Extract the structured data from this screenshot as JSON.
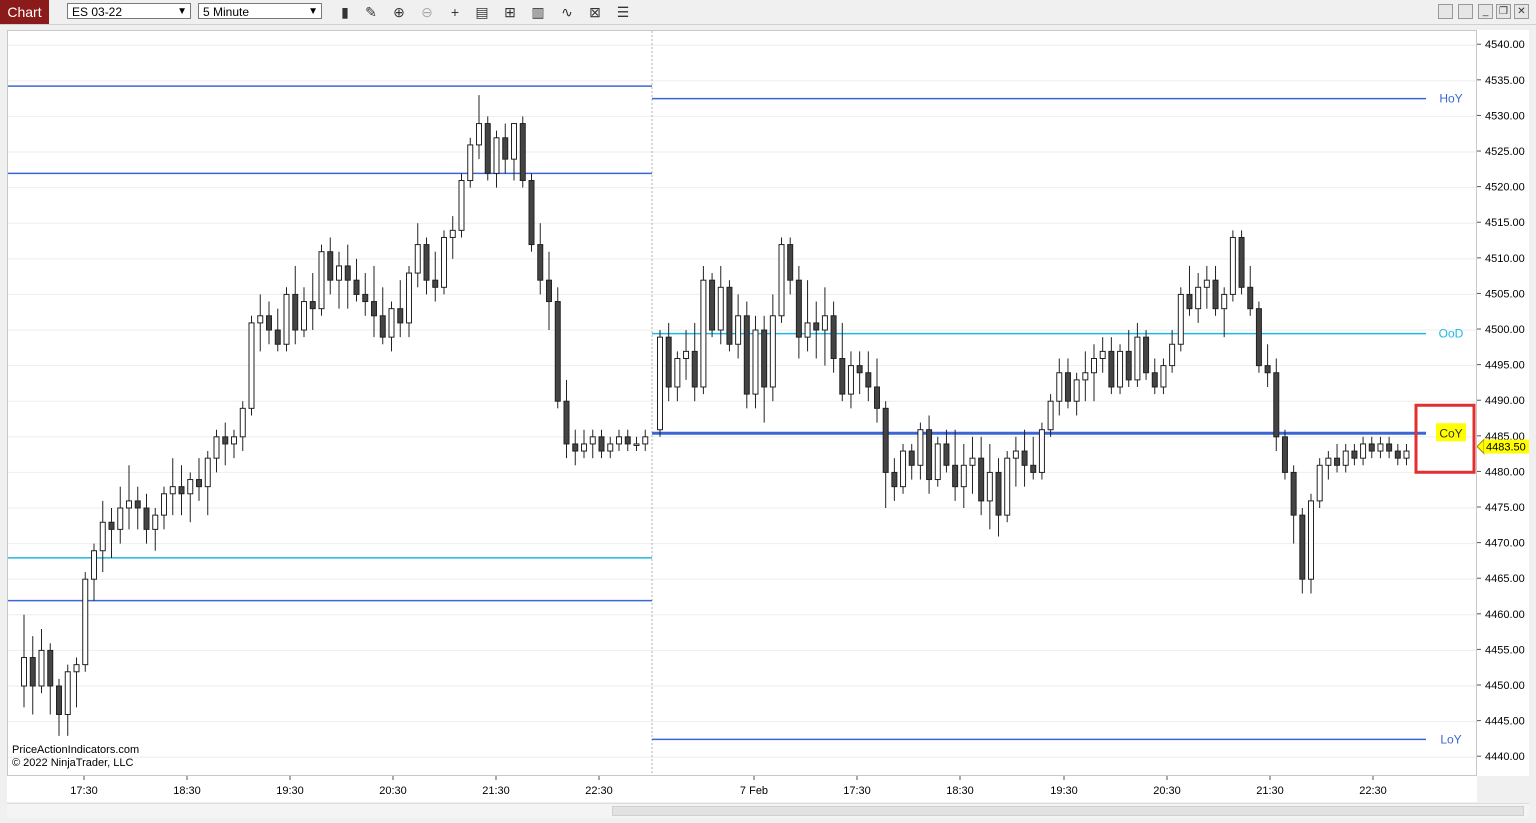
{
  "toolbar": {
    "tab_label": "Chart",
    "instrument": "ES 03-22",
    "interval": "5 Minute"
  },
  "credits": {
    "line1": "PriceActionIndicators.com",
    "line2": "© 2022 NinjaTrader, LLC"
  },
  "colors": {
    "blue_level": "#3a66d6",
    "cyan_level": "#1fb8e6",
    "label_blue": "#3a66d6",
    "label_cyan": "#1fb8e6",
    "price_marker": "#ffff00",
    "highlight_box": "#e03030"
  },
  "chart_data": {
    "type": "candlestick",
    "y_axis": {
      "ticks": [
        "4540.00",
        "4535.00",
        "4530.00",
        "4525.00",
        "4520.00",
        "4515.00",
        "4510.00",
        "4505.00",
        "4500.00",
        "4495.00",
        "4490.00",
        "4485.00",
        "4480.00",
        "4475.00",
        "4470.00",
        "4465.00",
        "4460.00",
        "4455.00",
        "4450.00",
        "4445.00",
        "4440.00"
      ],
      "ylim": [
        4437.5,
        4542
      ]
    },
    "x_axis": {
      "labels": [
        "17:30",
        "18:30",
        "19:30",
        "20:30",
        "21:30",
        "22:30",
        "7 Feb",
        "17:30",
        "18:30",
        "19:30",
        "20:30",
        "21:30",
        "22:30"
      ]
    },
    "last_price": "4483.50",
    "session_labels": [
      {
        "name": "HoY",
        "value": 4532.5,
        "style": "blue"
      },
      {
        "name": "OoD",
        "value": 4499.5,
        "style": "cyan"
      },
      {
        "name": "CoY",
        "value": 4485.5,
        "style": "blue",
        "highlighted": true
      },
      {
        "name": "LoY",
        "value": 4442.5,
        "style": "blue"
      }
    ],
    "prior_levels": [
      {
        "value": 4534.25,
        "style": "blue"
      },
      {
        "value": 4522.0,
        "style": "blue"
      },
      {
        "value": 4468.0,
        "style": "cyan"
      },
      {
        "value": 4462.0,
        "style": "blue"
      }
    ],
    "candles_session1": [
      [
        4450,
        4460,
        4447,
        4454
      ],
      [
        4454,
        4457,
        4446,
        4450
      ],
      [
        4450,
        4458,
        4449,
        4455
      ],
      [
        4455,
        4456,
        4446,
        4450
      ],
      [
        4450,
        4451,
        4443,
        4446
      ],
      [
        4446,
        4453,
        4443,
        4452
      ],
      [
        4452,
        4454,
        4447,
        4453
      ],
      [
        4453,
        4466,
        4452,
        4465
      ],
      [
        4465,
        4470,
        4462,
        4469
      ],
      [
        4469,
        4476,
        4466,
        4473
      ],
      [
        4473,
        4475,
        4468,
        4472
      ],
      [
        4472,
        4478,
        4470,
        4475
      ],
      [
        4475,
        4481,
        4472,
        4476
      ],
      [
        4476,
        4478,
        4472,
        4475
      ],
      [
        4475,
        4477,
        4470,
        4472
      ],
      [
        4472,
        4475,
        4469,
        4474
      ],
      [
        4474,
        4478,
        4472,
        4477
      ],
      [
        4477,
        4482,
        4474,
        4478
      ],
      [
        4478,
        4481,
        4474,
        4477
      ],
      [
        4477,
        4480,
        4473,
        4479
      ],
      [
        4479,
        4482,
        4476,
        4478
      ],
      [
        4478,
        4483,
        4474,
        4482
      ],
      [
        4482,
        4486,
        4480,
        4485
      ],
      [
        4485,
        4487,
        4481,
        4484
      ],
      [
        4484,
        4486,
        4482,
        4485
      ],
      [
        4485,
        4490,
        4483,
        4489
      ],
      [
        4489,
        4502,
        4488,
        4501
      ],
      [
        4501,
        4505,
        4497,
        4502
      ],
      [
        4502,
        4504,
        4498,
        4500
      ],
      [
        4500,
        4503,
        4497,
        4498
      ],
      [
        4498,
        4506,
        4497,
        4505
      ],
      [
        4505,
        4509,
        4498,
        4500
      ],
      [
        4500,
        4506,
        4499,
        4504
      ],
      [
        4504,
        4508,
        4500,
        4503
      ],
      [
        4503,
        4512,
        4502,
        4511
      ],
      [
        4511,
        4513,
        4505,
        4507
      ],
      [
        4507,
        4511,
        4503,
        4509
      ],
      [
        4509,
        4512,
        4503,
        4507
      ],
      [
        4507,
        4510,
        4504,
        4505
      ],
      [
        4505,
        4508,
        4502,
        4504
      ],
      [
        4504,
        4509,
        4499,
        4502
      ],
      [
        4502,
        4506,
        4498,
        4499
      ],
      [
        4499,
        4504,
        4497,
        4503
      ],
      [
        4503,
        4507,
        4499,
        4501
      ],
      [
        4501,
        4509,
        4499,
        4508
      ],
      [
        4508,
        4515,
        4506,
        4512
      ],
      [
        4512,
        4513,
        4505,
        4507
      ],
      [
        4507,
        4511,
        4504,
        4506
      ],
      [
        4506,
        4514,
        4505,
        4513
      ],
      [
        4513,
        4516,
        4510,
        4514
      ],
      [
        4514,
        4522,
        4513,
        4521
      ],
      [
        4521,
        4527,
        4520,
        4526
      ],
      [
        4526,
        4533,
        4524,
        4529
      ],
      [
        4529,
        4530,
        4521,
        4522
      ],
      [
        4522,
        4528,
        4520,
        4527
      ],
      [
        4527,
        4529,
        4522,
        4524
      ],
      [
        4524,
        4529,
        4521,
        4529
      ],
      [
        4529,
        4530,
        4520,
        4521
      ],
      [
        4521,
        4522,
        4511,
        4512
      ],
      [
        4512,
        4515,
        4505,
        4507
      ],
      [
        4507,
        4511,
        4500,
        4504
      ],
      [
        4504,
        4506,
        4489,
        4490
      ],
      [
        4490,
        4493,
        4482,
        4484
      ],
      [
        4484,
        4486,
        4481,
        4483
      ],
      [
        4483,
        4486,
        4482,
        4484
      ],
      [
        4484,
        4486,
        4482,
        4485
      ],
      [
        4485,
        4486,
        4482,
        4483
      ],
      [
        4483,
        4485,
        4482,
        4484
      ],
      [
        4484,
        4486,
        4483,
        4485
      ],
      [
        4485,
        4486,
        4483,
        4484
      ],
      [
        4484,
        4485,
        4483,
        4484
      ],
      [
        4484,
        4486,
        4483,
        4485
      ]
    ],
    "candles_session2": [
      [
        4486,
        4500,
        4485,
        4499
      ],
      [
        4499,
        4501,
        4490,
        4492
      ],
      [
        4492,
        4497,
        4490,
        4496
      ],
      [
        4496,
        4500,
        4493,
        4497
      ],
      [
        4497,
        4501,
        4490,
        4492
      ],
      [
        4492,
        4509,
        4491,
        4507
      ],
      [
        4507,
        4508,
        4499,
        4500
      ],
      [
        4500,
        4509,
        4498,
        4506
      ],
      [
        4506,
        4507,
        4497,
        4498
      ],
      [
        4498,
        4505,
        4496,
        4502
      ],
      [
        4502,
        4504,
        4489,
        4491
      ],
      [
        4491,
        4502,
        4489,
        4500
      ],
      [
        4500,
        4502,
        4487,
        4492
      ],
      [
        4492,
        4505,
        4490,
        4502
      ],
      [
        4502,
        4513,
        4501,
        4512
      ],
      [
        4512,
        4513,
        4505,
        4507
      ],
      [
        4507,
        4509,
        4496,
        4499
      ],
      [
        4499,
        4507,
        4497,
        4501
      ],
      [
        4501,
        4504,
        4496,
        4500
      ],
      [
        4500,
        4506,
        4495,
        4502
      ],
      [
        4502,
        4504,
        4494,
        4496
      ],
      [
        4496,
        4501,
        4490,
        4491
      ],
      [
        4491,
        4497,
        4489,
        4495
      ],
      [
        4495,
        4497,
        4491,
        4494
      ],
      [
        4494,
        4497,
        4490,
        4492
      ],
      [
        4492,
        4496,
        4487,
        4489
      ],
      [
        4489,
        4490,
        4475,
        4480
      ],
      [
        4480,
        4482,
        4476,
        4478
      ],
      [
        4478,
        4484,
        4477,
        4483
      ],
      [
        4483,
        4484,
        4479,
        4481
      ],
      [
        4481,
        4487,
        4479,
        4486
      ],
      [
        4486,
        4488,
        4477,
        4479
      ],
      [
        4479,
        4485,
        4478,
        4484
      ],
      [
        4484,
        4486,
        4480,
        4481
      ],
      [
        4481,
        4486,
        4476,
        4478
      ],
      [
        4478,
        4484,
        4475,
        4481
      ],
      [
        4481,
        4485,
        4477,
        4482
      ],
      [
        4482,
        4485,
        4474,
        4476
      ],
      [
        4476,
        4484,
        4472,
        4480
      ],
      [
        4480,
        4482,
        4471,
        4474
      ],
      [
        4474,
        4483,
        4473,
        4482
      ],
      [
        4482,
        4485,
        4478,
        4483
      ],
      [
        4483,
        4486,
        4478,
        4481
      ],
      [
        4481,
        4485,
        4479,
        4480
      ],
      [
        4480,
        4487,
        4479,
        4486
      ],
      [
        4486,
        4491,
        4485,
        4490
      ],
      [
        4490,
        4496,
        4488,
        4494
      ],
      [
        4494,
        4496,
        4489,
        4490
      ],
      [
        4490,
        4494,
        4488,
        4493
      ],
      [
        4493,
        4497,
        4490,
        4494
      ],
      [
        4494,
        4498,
        4490,
        4496
      ],
      [
        4496,
        4499,
        4494,
        4497
      ],
      [
        4497,
        4499,
        4491,
        4492
      ],
      [
        4492,
        4498,
        4491,
        4497
      ],
      [
        4497,
        4500,
        4492,
        4493
      ],
      [
        4493,
        4501,
        4492,
        4499
      ],
      [
        4499,
        4500,
        4493,
        4494
      ],
      [
        4494,
        4496,
        4491,
        4492
      ],
      [
        4492,
        4496,
        4491,
        4495
      ],
      [
        4495,
        4500,
        4494,
        4498
      ],
      [
        4498,
        4506,
        4497,
        4505
      ],
      [
        4505,
        4509,
        4502,
        4503
      ],
      [
        4503,
        4508,
        4501,
        4506
      ],
      [
        4506,
        4509,
        4503,
        4507
      ],
      [
        4507,
        4509,
        4502,
        4503
      ],
      [
        4503,
        4506,
        4499,
        4505
      ],
      [
        4505,
        4514,
        4504,
        4513
      ],
      [
        4513,
        4514,
        4505,
        4506
      ],
      [
        4506,
        4509,
        4502,
        4503
      ],
      [
        4503,
        4504,
        4494,
        4495
      ],
      [
        4495,
        4498,
        4492,
        4494
      ],
      [
        4494,
        4496,
        4483,
        4485
      ],
      [
        4485,
        4486,
        4479,
        4480
      ],
      [
        4480,
        4481,
        4470,
        4474
      ],
      [
        4474,
        4475,
        4463,
        4465
      ],
      [
        4465,
        4477,
        4463,
        4476
      ],
      [
        4476,
        4482,
        4475,
        4481
      ],
      [
        4481,
        4483,
        4479,
        4482
      ],
      [
        4482,
        4484,
        4480,
        4481
      ],
      [
        4481,
        4484,
        4480,
        4483
      ],
      [
        4483,
        4484,
        4481,
        4482
      ],
      [
        4482,
        4485,
        4481,
        4484
      ],
      [
        4484,
        4485,
        4482,
        4483
      ],
      [
        4483,
        4485,
        4482,
        4484
      ],
      [
        4484,
        4485,
        4482,
        4483
      ],
      [
        4483,
        4484,
        4481,
        4482
      ],
      [
        4482,
        4484,
        4481,
        4483
      ]
    ]
  }
}
